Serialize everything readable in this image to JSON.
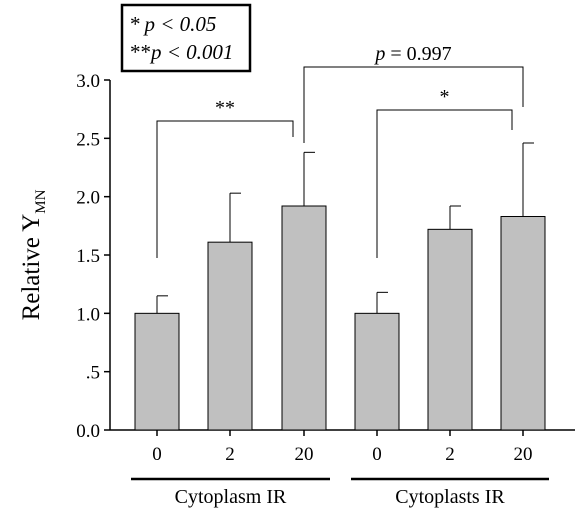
{
  "chart_data": {
    "type": "bar",
    "ylabel": "Relative Y",
    "ylabel_subscript": "MN",
    "ylim": [
      0,
      3.0
    ],
    "yticks": [
      0,
      0.5,
      1.0,
      1.5,
      2.0,
      2.5,
      3.0
    ],
    "ytick_labels": [
      "0.0",
      ".5",
      "1.0",
      "1.5",
      "2.0",
      "2.5",
      "3.0"
    ],
    "bar_color": "#c0c0c0",
    "grid": false,
    "groups": [
      {
        "label": "Cytoplasm IR",
        "categories": [
          "0",
          "2",
          "20"
        ],
        "values": [
          1.0,
          1.61,
          1.92
        ],
        "errors": [
          0.15,
          0.42,
          0.46
        ]
      },
      {
        "label": "Cytoplasts IR",
        "categories": [
          "0",
          "2",
          "20"
        ],
        "values": [
          1.0,
          1.72,
          1.83
        ],
        "errors": [
          0.18,
          0.2,
          0.63
        ]
      }
    ],
    "significance": [
      {
        "label": "**",
        "bars": [
          "group1-0",
          "group1-20"
        ]
      },
      {
        "label": "*",
        "bars": [
          "group2-0",
          "group2-20"
        ]
      },
      {
        "label": "p = 0.997",
        "bars": [
          "group1-20",
          "group2-20"
        ]
      }
    ],
    "legend": {
      "position": "top-left",
      "lines": [
        {
          "stars": "*",
          "text": "p < 0.05"
        },
        {
          "stars": "**",
          "text": "p < 0.001"
        }
      ]
    }
  }
}
